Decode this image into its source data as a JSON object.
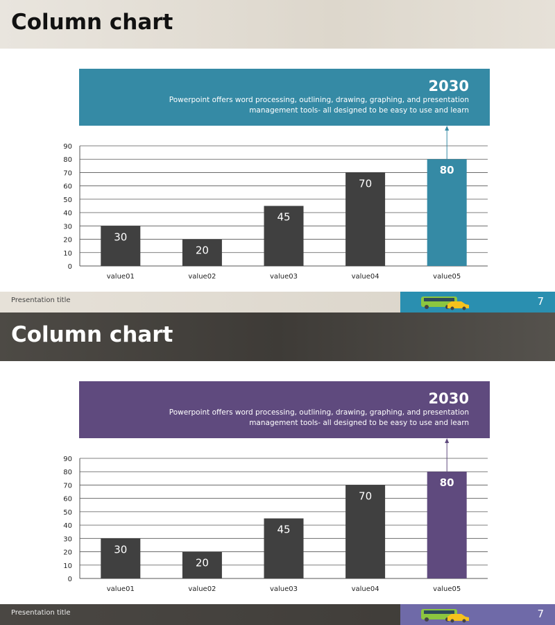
{
  "slides": [
    {
      "title": "Column chart",
      "callout_year": "2030",
      "callout_text": "Powerpoint offers word processing, outlining, drawing, graphing, and presentation management tools- all designed to be easy to use and learn",
      "footer_title": "Presentation title",
      "page_number": "7",
      "accent": "#358aa5",
      "footer_accent": "#2a8fb0"
    },
    {
      "title": "Column chart",
      "callout_year": "2030",
      "callout_text": "Powerpoint offers word processing, outlining, drawing, graphing, and presentation management tools- all designed to be easy to use and learn",
      "footer_title": "Presentation title",
      "page_number": "7",
      "accent": "#5f4a7e",
      "footer_accent": "#6f6aa8"
    }
  ],
  "chart_data": [
    {
      "type": "bar",
      "categories": [
        "value01",
        "value02",
        "value03",
        "value04",
        "value05"
      ],
      "values": [
        30,
        20,
        45,
        70,
        80
      ],
      "ylim": [
        0,
        90
      ],
      "yticks": [
        0,
        10,
        20,
        30,
        40,
        50,
        60,
        70,
        80,
        90
      ],
      "grid": true,
      "highlight_index": 4,
      "bar_color": "#404040",
      "highlight_color": "#358aa5"
    },
    {
      "type": "bar",
      "categories": [
        "value01",
        "value02",
        "value03",
        "value04",
        "value05"
      ],
      "values": [
        30,
        20,
        45,
        70,
        80
      ],
      "ylim": [
        0,
        90
      ],
      "yticks": [
        0,
        10,
        20,
        30,
        40,
        50,
        60,
        70,
        80,
        90
      ],
      "grid": true,
      "highlight_index": 4,
      "bar_color": "#404040",
      "highlight_color": "#5f4a7e"
    }
  ]
}
